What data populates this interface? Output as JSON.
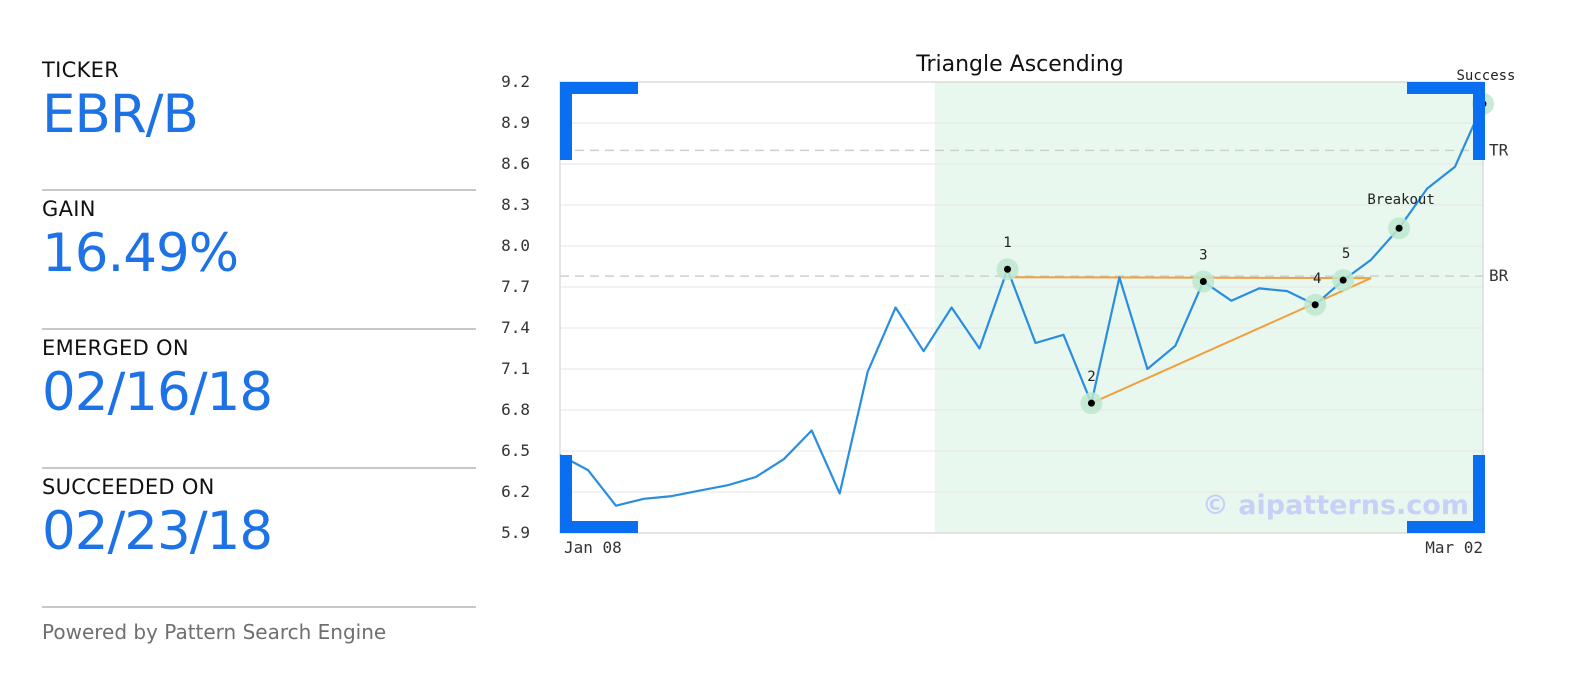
{
  "stats": {
    "ticker_label": "TICKER",
    "ticker_value": "EBR/B",
    "gain_label": "GAIN",
    "gain_value": "16.49%",
    "emerged_label": "EMERGED ON",
    "emerged_value": "02/16/18",
    "succeeded_label": "SUCCEEDED ON",
    "succeeded_value": "02/23/18",
    "powered_by": "Powered by Pattern Search Engine"
  },
  "colors": {
    "accent": "#1d72e6",
    "price_line": "#2a8ee0",
    "pattern_line": "#f0a040",
    "highlight": "#e9f8ee",
    "marker_halo": "#bde8cf",
    "corner": "#0a6ef0"
  },
  "chart_data": {
    "type": "line",
    "title": "Triangle Ascending",
    "xlabel": "",
    "ylabel": "",
    "x_start_label": "Jan 08",
    "x_end_label": "Mar 02",
    "yticks": [
      5.9,
      6.2,
      6.5,
      6.8,
      7.1,
      7.4,
      7.7,
      8.0,
      8.3,
      8.6,
      8.9,
      9.2
    ],
    "ylim": [
      5.9,
      9.2
    ],
    "grid": true,
    "series": [
      {
        "values": [
          6.47,
          6.36,
          6.1,
          6.15,
          6.17,
          6.21,
          6.25,
          6.31,
          6.44,
          6.65,
          6.19,
          7.08,
          7.55,
          7.23,
          7.55,
          7.25,
          7.83,
          7.29,
          7.35,
          6.85,
          7.77,
          7.1,
          7.27,
          7.74,
          7.6,
          7.69,
          7.67,
          7.57,
          7.75,
          7.9,
          8.13,
          8.42,
          8.58,
          9.04
        ]
      }
    ],
    "highlight_range": [
      14,
      33
    ],
    "reference_lines": [
      {
        "label": "TR",
        "value": 8.7
      },
      {
        "label": "BR",
        "value": 7.78
      }
    ],
    "pattern_points": [
      {
        "label": "1",
        "index": 16,
        "value": 7.83
      },
      {
        "label": "2",
        "index": 19,
        "value": 6.85
      },
      {
        "label": "3",
        "index": 23,
        "value": 7.74
      },
      {
        "label": "4",
        "index": 27,
        "value": 7.57
      },
      {
        "label": "5",
        "index": 28,
        "value": 7.75
      },
      {
        "label": "Breakout",
        "index": 30,
        "value": 8.13
      },
      {
        "label": "Success",
        "index": 33,
        "value": 9.04
      }
    ],
    "watermark": "© aipatterns.com"
  }
}
